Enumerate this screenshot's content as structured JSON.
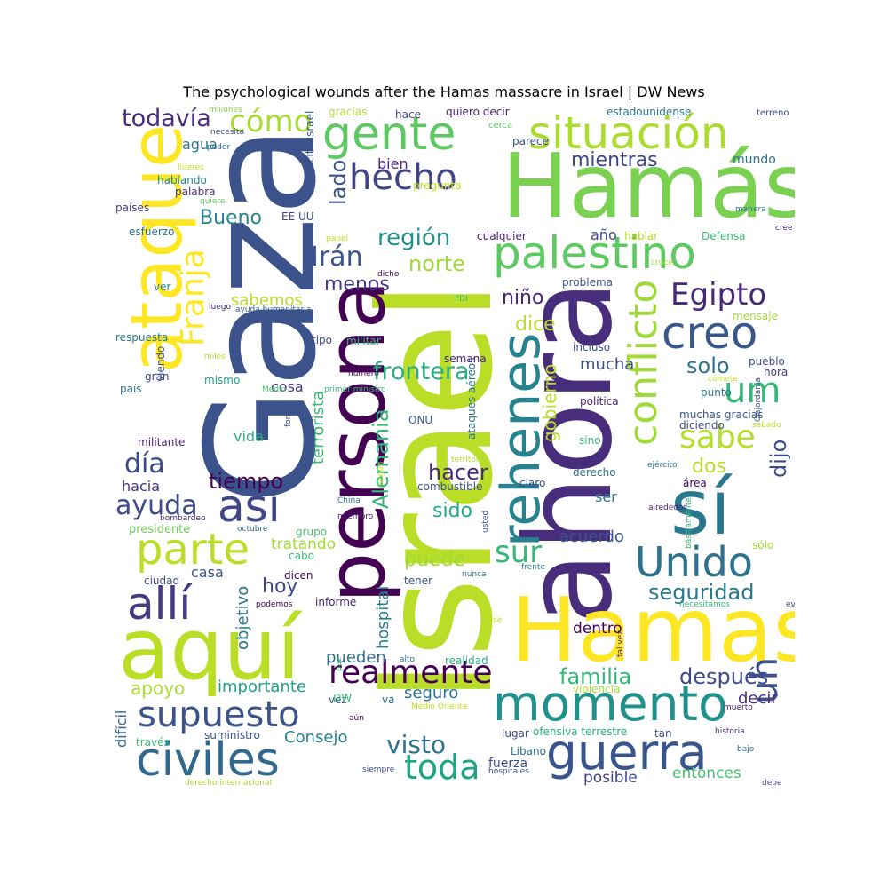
{
  "title": "The psychological wounds after the Hamas massacre in Israel | DW News",
  "words": [
    {
      "text": "Israel",
      "color": "#bade28",
      "size": 175,
      "rot": -90
    },
    {
      "text": "Gaza",
      "color": "#3b528b",
      "size": 170,
      "rot": -90
    },
    {
      "text": "ahora",
      "color": "#472d7b",
      "size": 135,
      "rot": -90
    },
    {
      "text": "Hamás",
      "color": "#7ad151",
      "size": 100,
      "rot": 0
    },
    {
      "text": "Hamas",
      "color": "#fde725",
      "size": 100,
      "rot": 0
    },
    {
      "text": "aquí",
      "color": "#bade28",
      "size": 95,
      "rot": 0
    },
    {
      "text": "persona",
      "color": "#440154",
      "size": 90,
      "rot": -90
    },
    {
      "text": "ataque",
      "color": "#fde725",
      "size": 80,
      "rot": -90
    },
    {
      "text": "sí",
      "color": "#2a788e",
      "size": 85,
      "rot": 0
    },
    {
      "text": "rehenes",
      "color": "#26828e",
      "size": 60,
      "rot": -90
    },
    {
      "text": "momento",
      "color": "#21918c",
      "size": 55,
      "rot": 0
    },
    {
      "text": "guerra",
      "color": "#39568c",
      "size": 55,
      "rot": 0
    },
    {
      "text": "civiles",
      "color": "#31688e",
      "size": 52,
      "rot": 0
    },
    {
      "text": "gente",
      "color": "#5ec962",
      "size": 52,
      "rot": 0
    },
    {
      "text": "situación",
      "color": "#addc30",
      "size": 50,
      "rot": 0
    },
    {
      "text": "palestino",
      "color": "#5ec962",
      "size": 50,
      "rot": 0
    },
    {
      "text": "creo",
      "color": "#38588c",
      "size": 50,
      "rot": 0
    },
    {
      "text": "allí",
      "color": "#443a83",
      "size": 50,
      "rot": 0
    },
    {
      "text": "así",
      "color": "#3f4788",
      "size": 50,
      "rot": 0
    },
    {
      "text": "parte",
      "color": "#bade28",
      "size": 48,
      "rot": 0
    },
    {
      "text": "Unido",
      "color": "#2c728e",
      "size": 46,
      "rot": 0
    },
    {
      "text": "conflicto",
      "color": "#a0da39",
      "size": 44,
      "rot": -90
    },
    {
      "text": "supuesto",
      "color": "#3b528b",
      "size": 40,
      "rot": 0
    },
    {
      "text": "hecho",
      "color": "#404688",
      "size": 40,
      "rot": 0
    },
    {
      "text": "realmente",
      "color": "#440154",
      "size": 36,
      "rot": 0
    },
    {
      "text": "um",
      "color": "#35b779",
      "size": 40,
      "rot": 0
    },
    {
      "text": "uh",
      "color": "#3b528b",
      "size": 42,
      "rot": -90
    },
    {
      "text": "toda",
      "color": "#20a386",
      "size": 38,
      "rot": 0
    },
    {
      "text": "sabe",
      "color": "#b5de2b",
      "size": 36,
      "rot": 0
    },
    {
      "text": "Egipto",
      "color": "#482878",
      "size": 34,
      "rot": 0
    },
    {
      "text": "Franja",
      "color": "#fde725",
      "size": 36,
      "rot": -90
    },
    {
      "text": "cómo",
      "color": "#a8db34",
      "size": 34,
      "rot": 0
    },
    {
      "text": "sur",
      "color": "#35b779",
      "size": 34,
      "rot": 0
    },
    {
      "text": "ayuda",
      "color": "#3e4a89",
      "size": 30,
      "rot": 0
    },
    {
      "text": "día",
      "color": "#3e4989",
      "size": 30,
      "rot": 0
    },
    {
      "text": "Irán",
      "color": "#3b528b",
      "size": 30,
      "rot": 0
    },
    {
      "text": "visto",
      "color": "#2d718e",
      "size": 28,
      "rot": 0
    },
    {
      "text": "todavía",
      "color": "#472d7b",
      "size": 27,
      "rot": 0
    },
    {
      "text": "frontera",
      "color": "#29af7f",
      "size": 27,
      "rot": 0
    },
    {
      "text": "región",
      "color": "#21918c",
      "size": 26,
      "rot": 0
    },
    {
      "text": "Alemania",
      "color": "#35b779",
      "size": 24,
      "rot": -90
    },
    {
      "text": "seguridad",
      "color": "#2a788e",
      "size": 24,
      "rot": 0
    },
    {
      "text": "después",
      "color": "#3e4a89",
      "size": 24,
      "rot": 0
    },
    {
      "text": "familia",
      "color": "#35b779",
      "size": 24,
      "rot": 0
    },
    {
      "text": "tiempo",
      "color": "#440154",
      "size": 24,
      "rot": 0
    },
    {
      "text": "solo",
      "color": "#2d708e",
      "size": 24,
      "rot": 0
    },
    {
      "text": "norte",
      "color": "#a0da39",
      "size": 24,
      "rot": 0
    },
    {
      "text": "lado",
      "color": "#3b528b",
      "size": 24,
      "rot": -90
    },
    {
      "text": "hacer",
      "color": "#472c7a",
      "size": 24,
      "rot": 0
    },
    {
      "text": "dijo",
      "color": "#3e4c8a",
      "size": 24,
      "rot": -90
    },
    {
      "text": "Bueno",
      "color": "#25848e",
      "size": 22,
      "rot": 0
    },
    {
      "text": "mientras",
      "color": "#414487",
      "size": 22,
      "rot": 0
    },
    {
      "text": "menos",
      "color": "#443983",
      "size": 22,
      "rot": 0
    },
    {
      "text": "niño",
      "color": "#482475",
      "size": 22,
      "rot": 0
    },
    {
      "text": "dice",
      "color": "#bade28",
      "size": 22,
      "rot": 0
    },
    {
      "text": "hoy",
      "color": "#3f4788",
      "size": 22,
      "rot": 0
    },
    {
      "text": "puede",
      "color": "#a2da37",
      "size": 22,
      "rot": 0
    },
    {
      "text": "sido",
      "color": "#22a785",
      "size": 22,
      "rot": 0
    },
    {
      "text": "dos",
      "color": "#b8de29",
      "size": 22,
      "rot": 0
    },
    {
      "text": "gobierno",
      "color": "#bade28",
      "size": 20,
      "rot": -90
    },
    {
      "text": "apoyo",
      "color": "#aadc32",
      "size": 20,
      "rot": 0
    },
    {
      "text": "Consejo",
      "color": "#25858e",
      "size": 18,
      "rot": 0
    },
    {
      "text": "terrorista",
      "color": "#38b977",
      "size": 18,
      "rot": -90
    },
    {
      "text": "hospital",
      "color": "#26818e",
      "size": 18,
      "rot": -90
    },
    {
      "text": "objetivo",
      "color": "#2a768e",
      "size": 18,
      "rot": -90
    },
    {
      "text": "sabemos",
      "color": "#b8de29",
      "size": 18,
      "rot": 0
    },
    {
      "text": "mucha",
      "color": "#3d4e8a",
      "size": 18,
      "rot": 0
    },
    {
      "text": "acuerdo",
      "color": "#39558c",
      "size": 18,
      "rot": 0
    },
    {
      "text": "pueden",
      "color": "#2e6e8e",
      "size": 18,
      "rot": 0
    },
    {
      "text": "seguro",
      "color": "#2c738e",
      "size": 18,
      "rot": 0
    },
    {
      "text": "decir",
      "color": "#472f7d",
      "size": 18,
      "rot": 0
    },
    {
      "text": "importante",
      "color": "#1fa088",
      "size": 18,
      "rot": 0
    },
    {
      "text": "entonces",
      "color": "#46c06f",
      "size": 17,
      "rot": 0
    },
    {
      "text": "posible",
      "color": "#404588",
      "size": 17,
      "rot": 0
    },
    {
      "text": "tratando",
      "color": "#a5db36",
      "size": 17,
      "rot": 0
    },
    {
      "text": "dentro",
      "color": "#440154",
      "size": 17,
      "rot": 0
    },
    {
      "text": "agua",
      "color": "#2c728e",
      "size": 16,
      "rot": 0
    },
    {
      "text": "cosa",
      "color": "#453882",
      "size": 16,
      "rot": 0
    },
    {
      "text": "hacia",
      "color": "#463480",
      "size": 16,
      "rot": 0
    },
    {
      "text": "vida",
      "color": "#29af7f",
      "size": 16,
      "rot": 0
    },
    {
      "text": "difícil",
      "color": "#31688e",
      "size": 16,
      "rot": -90
    },
    {
      "text": "ser",
      "color": "#2a778e",
      "size": 16,
      "rot": 0
    },
    {
      "text": "casa",
      "color": "#3a548c",
      "size": 16,
      "rot": 0
    },
    {
      "text": "bien",
      "color": "#472a7a",
      "size": 16,
      "rot": 0
    },
    {
      "text": "mundo",
      "color": "#2f6c8e",
      "size": 14,
      "rot": 0
    },
    {
      "text": "año",
      "color": "#3d4d8a",
      "size": 16,
      "rot": 0
    },
    {
      "text": "fuerza",
      "color": "#3e4a89",
      "size": 14,
      "rot": 0
    },
    {
      "text": "presidente",
      "color": "#6ece58",
      "size": 13,
      "rot": 0
    },
    {
      "text": "combustible",
      "color": "#3b528b",
      "size": 12,
      "rot": 0
    },
    {
      "text": "derecho",
      "color": "#2c738e",
      "size": 12,
      "rot": 0
    },
    {
      "text": "política",
      "color": "#481f70",
      "size": 12,
      "rot": 0
    },
    {
      "text": "incluso",
      "color": "#3e4a89",
      "size": 12,
      "rot": 0
    },
    {
      "text": "problema",
      "color": "#3a548c",
      "size": 12,
      "rot": 0
    },
    {
      "text": "cualquier",
      "color": "#481f70",
      "size": 12,
      "rot": 0
    },
    {
      "text": "hablar",
      "color": "#bade28",
      "size": 12,
      "rot": 0
    },
    {
      "text": "Defensa",
      "color": "#3aba76",
      "size": 12,
      "rot": 0
    },
    {
      "text": "estadounidense",
      "color": "#2a788e",
      "size": 12,
      "rot": 0
    },
    {
      "text": "terreno",
      "color": "#3e4c8a",
      "size": 10,
      "rot": 0
    },
    {
      "text": "quiero decir",
      "color": "#482173",
      "size": 12,
      "rot": 0
    },
    {
      "text": "hace",
      "color": "#3e4989",
      "size": 12,
      "rot": 0
    },
    {
      "text": "gracias",
      "color": "#addc30",
      "size": 12,
      "rot": 0
    },
    {
      "text": "cerca",
      "color": "#5ec962",
      "size": 10,
      "rot": 0
    },
    {
      "text": "parece",
      "color": "#3e4c8a",
      "size": 12,
      "rot": 0
    },
    {
      "text": "millones",
      "color": "#86d549",
      "size": 9,
      "rot": 0
    },
    {
      "text": "necesita",
      "color": "#3b528b",
      "size": 9,
      "rot": 0
    },
    {
      "text": "poder",
      "color": "#2c738e",
      "size": 9,
      "rot": 0
    },
    {
      "text": "líderes",
      "color": "#c2df23",
      "size": 9,
      "rot": 0
    },
    {
      "text": "hablando",
      "color": "#25838e",
      "size": 12,
      "rot": 0
    },
    {
      "text": "palabra",
      "color": "#472f7d",
      "size": 12,
      "rot": 0
    },
    {
      "text": "quiere",
      "color": "#5ec962",
      "size": 9,
      "rot": 0
    },
    {
      "text": "pregunta",
      "color": "#c8e020",
      "size": 12,
      "rot": 0
    },
    {
      "text": "ejército Israel",
      "color": "#3b528b",
      "size": 12,
      "rot": -90
    },
    {
      "text": "países",
      "color": "#443983",
      "size": 12,
      "rot": 0
    },
    {
      "text": "esfuerzo",
      "color": "#2e6f8e",
      "size": 12,
      "rot": 0
    },
    {
      "text": "simplemente",
      "color": "#3aba76",
      "size": 10,
      "rot": -90
    },
    {
      "text": "EE UU",
      "color": "#3f4788",
      "size": 12,
      "rot": 0
    },
    {
      "text": "papel",
      "color": "#c2df23",
      "size": 9,
      "rot": 0
    },
    {
      "text": "dicho",
      "color": "#440154",
      "size": 9,
      "rot": 0
    },
    {
      "text": "FDI",
      "color": "#3aba76",
      "size": 9,
      "rot": 0
    },
    {
      "text": "cruce",
      "color": "#a8db34",
      "size": 9,
      "rot": 0
    },
    {
      "text": "manera",
      "color": "#2d718e",
      "size": 9,
      "rot": 0
    },
    {
      "text": "cree",
      "color": "#482475",
      "size": 9,
      "rot": 0
    },
    {
      "text": "ver",
      "color": "#25848e",
      "size": 12,
      "rot": 0
    },
    {
      "text": "Medio",
      "color": "#4ac16d",
      "size": 9,
      "rot": 0
    },
    {
      "text": "luego",
      "color": "#472f7d",
      "size": 9,
      "rot": 0
    },
    {
      "text": "ayuda humanitaria",
      "color": "#39558c",
      "size": 9,
      "rot": 0
    },
    {
      "text": "mensaje",
      "color": "#a2da37",
      "size": 12,
      "rot": 0
    },
    {
      "text": "respuesta",
      "color": "#2a788e",
      "size": 12,
      "rot": 0
    },
    {
      "text": "viendo",
      "color": "#3b528b",
      "size": 12,
      "rot": -90
    },
    {
      "text": "miles",
      "color": "#bade28",
      "size": 9,
      "rot": 0
    },
    {
      "text": "tipo",
      "color": "#3e4989",
      "size": 12,
      "rot": 0
    },
    {
      "text": "militar",
      "color": "#37b878",
      "size": 12,
      "rot": 0
    },
    {
      "text": "ataques aéreos",
      "color": "#2c728e",
      "size": 12,
      "rot": -90
    },
    {
      "text": "número",
      "color": "#440154",
      "size": 9,
      "rot": 0
    },
    {
      "text": "semana",
      "color": "#482173",
      "size": 12,
      "rot": 0
    },
    {
      "text": "pueblo",
      "color": "#3e4c8a",
      "size": 12,
      "rot": 0
    },
    {
      "text": "hora",
      "color": "#453882",
      "size": 12,
      "rot": 0
    },
    {
      "text": "cómete",
      "color": "#c2df23",
      "size": 9,
      "rot": 0
    },
    {
      "text": "punto",
      "color": "#2a788e",
      "size": 12,
      "rot": 0
    },
    {
      "text": "Cisjordania",
      "color": "#3b528b",
      "size": 9,
      "rot": -90
    },
    {
      "text": "gran",
      "color": "#3e4989",
      "size": 12,
      "rot": 0
    },
    {
      "text": "mismo",
      "color": "#1fa188",
      "size": 12,
      "rot": 0
    },
    {
      "text": "país",
      "color": "#2d718e",
      "size": 12,
      "rot": 0
    },
    {
      "text": "primer ministro",
      "color": "#3aba76",
      "size": 9,
      "rot": 0
    },
    {
      "text": "ONU",
      "color": "#39558c",
      "size": 12,
      "rot": 0
    },
    {
      "text": "forma",
      "color": "#3b528b",
      "size": 9,
      "rot": -90
    },
    {
      "text": "muchas gracias",
      "color": "#39558c",
      "size": 12,
      "rot": 0
    },
    {
      "text": "diciendo",
      "color": "#3e4989",
      "size": 12,
      "rot": 0
    },
    {
      "text": "sábado",
      "color": "#bade28",
      "size": 9,
      "rot": 0
    },
    {
      "text": "militante",
      "color": "#481f70",
      "size": 12,
      "rot": 0
    },
    {
      "text": "sino",
      "color": "#3aba76",
      "size": 12,
      "rot": 0
    },
    {
      "text": "territorio",
      "color": "#a8db34",
      "size": 9,
      "rot": 0
    },
    {
      "text": "según",
      "color": "#c2df23",
      "size": 9,
      "rot": -90
    },
    {
      "text": "ejército",
      "color": "#2a788e",
      "size": 9,
      "rot": 0
    },
    {
      "text": "claro",
      "color": "#3e4a89",
      "size": 12,
      "rot": 0
    },
    {
      "text": "área",
      "color": "#440154",
      "size": 12,
      "rot": 0
    },
    {
      "text": "China",
      "color": "#2c728e",
      "size": 9,
      "rot": 0
    },
    {
      "text": "miembro",
      "color": "#481f70",
      "size": 9,
      "rot": 0
    },
    {
      "text": "bombardeo",
      "color": "#472f7d",
      "size": 9,
      "rot": 0
    },
    {
      "text": "octubre",
      "color": "#2c728e",
      "size": 9,
      "rot": 0
    },
    {
      "text": "usted",
      "color": "#3b528b",
      "size": 9,
      "rot": -90
    },
    {
      "text": "alrededor",
      "color": "#482173",
      "size": 9,
      "rot": 0
    },
    {
      "text": "básicamente",
      "color": "#37b878",
      "size": 9,
      "rot": -90
    },
    {
      "text": "grupo",
      "color": "#4ac16d",
      "size": 12,
      "rot": 0
    },
    {
      "text": "sólo",
      "color": "#a2da37",
      "size": 12,
      "rot": 0
    },
    {
      "text": "cabo",
      "color": "#3aba76",
      "size": 12,
      "rot": 0
    },
    {
      "text": "ciudad",
      "color": "#3e4989",
      "size": 12,
      "rot": 0
    },
    {
      "text": "dicen",
      "color": "#440154",
      "size": 12,
      "rot": 0
    },
    {
      "text": "nunca",
      "color": "#2c728e",
      "size": 9,
      "rot": 0
    },
    {
      "text": "frente",
      "color": "#25858e",
      "size": 9,
      "rot": 0
    },
    {
      "text": "tener",
      "color": "#3b528b",
      "size": 12,
      "rot": 0
    },
    {
      "text": "podemos",
      "color": "#440154",
      "size": 9,
      "rot": 0
    },
    {
      "text": "informe",
      "color": "#482173",
      "size": 12,
      "rot": 0
    },
    {
      "text": "sé",
      "color": "#bade28",
      "size": 9,
      "rot": 0
    },
    {
      "text": "necesitamos",
      "color": "#37b878",
      "size": 9,
      "rot": 0
    },
    {
      "text": "evitar",
      "color": "#3e4989",
      "size": 9,
      "rot": 0
    },
    {
      "text": "tal vez",
      "color": "#482173",
      "size": 9,
      "rot": -90
    },
    {
      "text": "paz",
      "color": "#3aba76",
      "size": 9,
      "rot": -90
    },
    {
      "text": "alto",
      "color": "#2c728e",
      "size": 9,
      "rot": 0
    },
    {
      "text": "realidad",
      "color": "#29af7f",
      "size": 12,
      "rot": 0
    },
    {
      "text": "violencia",
      "color": "#a8db34",
      "size": 12,
      "rot": 0
    },
    {
      "text": "vez",
      "color": "#3b528b",
      "size": 12,
      "rot": 0
    },
    {
      "text": "DW",
      "color": "#3aba76",
      "size": 12,
      "rot": 0
    },
    {
      "text": "va",
      "color": "#2c728e",
      "size": 12,
      "rot": 0
    },
    {
      "text": "Medio Oriente",
      "color": "#c2df23",
      "size": 9,
      "rot": 0
    },
    {
      "text": "muerto",
      "color": "#481f70",
      "size": 9,
      "rot": 0
    },
    {
      "text": "aún",
      "color": "#440154",
      "size": 9,
      "rot": 0
    },
    {
      "text": "lugar",
      "color": "#3e4989",
      "size": 12,
      "rot": 0
    },
    {
      "text": "ofensiva terrestre",
      "color": "#29af7f",
      "size": 12,
      "rot": 0
    },
    {
      "text": "tan",
      "color": "#3b528b",
      "size": 12,
      "rot": 0
    },
    {
      "text": "historia",
      "color": "#472f7d",
      "size": 9,
      "rot": 0
    },
    {
      "text": "través",
      "color": "#37b878",
      "size": 12,
      "rot": 0
    },
    {
      "text": "suministro",
      "color": "#3b528b",
      "size": 12,
      "rot": 0
    },
    {
      "text": "Líbano",
      "color": "#2c728e",
      "size": 12,
      "rot": 0
    },
    {
      "text": "bajo",
      "color": "#2c728e",
      "size": 9,
      "rot": 0
    },
    {
      "text": "hospitales",
      "color": "#3b528b",
      "size": 9,
      "rot": 0
    },
    {
      "text": "siempre",
      "color": "#3e4a89",
      "size": 9,
      "rot": 0
    },
    {
      "text": "derecho internacional",
      "color": "#a8db34",
      "size": 9,
      "rot": 0
    },
    {
      "text": "debe",
      "color": "#3e4989",
      "size": 9,
      "rot": 0
    }
  ]
}
